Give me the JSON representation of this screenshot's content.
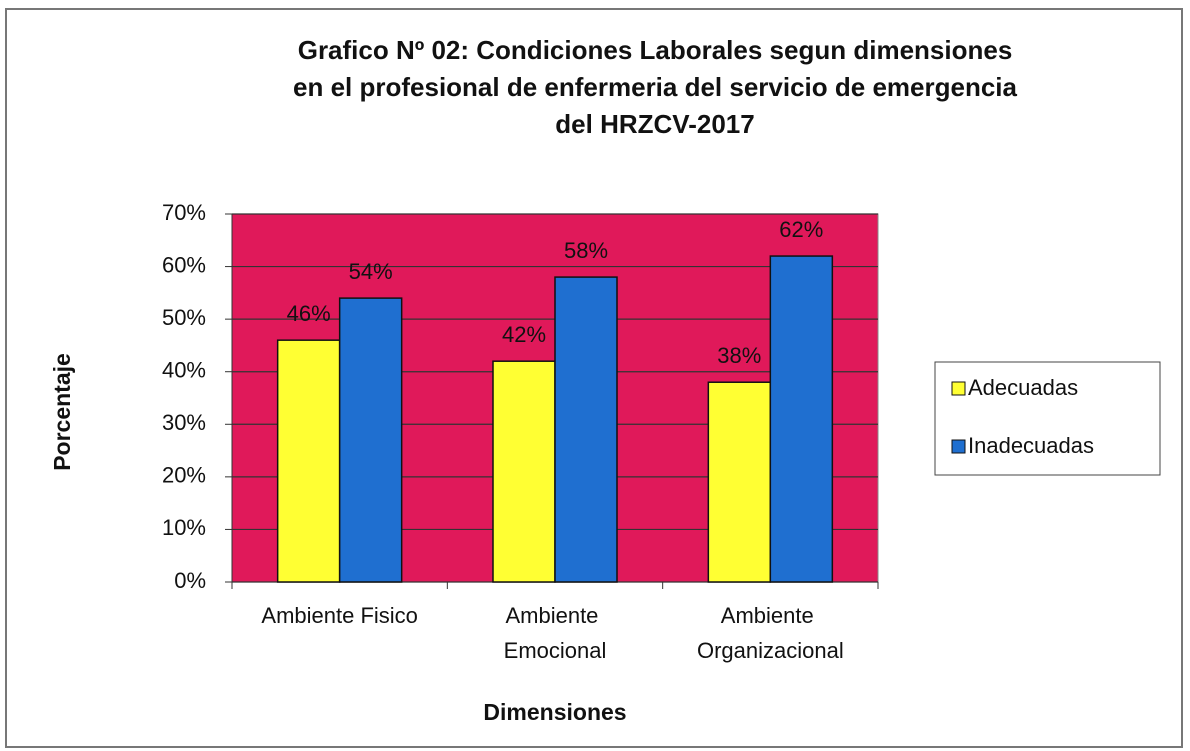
{
  "chart_data": {
    "type": "bar",
    "title": [
      "Grafico Nº 02: Condiciones Laborales segun dimensiones",
      "en el profesional de enfermeria del servicio de emergencia",
      "del HRZCV-2017"
    ],
    "x_label": "Dimensiones",
    "y_label": "Porcentaje",
    "categories": [
      "Ambiente Fisico",
      "Ambiente Emocional",
      "Ambiente Organizacional"
    ],
    "series": [
      {
        "name": "Adecuadas",
        "color": "#ffff33",
        "values": [
          46,
          42,
          38
        ],
        "value_labels": [
          "46%",
          "42%",
          "38%"
        ]
      },
      {
        "name": "Inadecuadas",
        "color": "#1f6fd0",
        "values": [
          54,
          58,
          62
        ],
        "value_labels": [
          "54%",
          "58%",
          "62%"
        ]
      }
    ],
    "ylim": [
      0,
      70
    ],
    "yticks": [
      {
        "value": 0,
        "label": "0%"
      },
      {
        "value": 10,
        "label": "10%"
      },
      {
        "value": 20,
        "label": "20%"
      },
      {
        "value": 30,
        "label": "30%"
      },
      {
        "value": 40,
        "label": "40%"
      },
      {
        "value": 50,
        "label": "50%"
      },
      {
        "value": 60,
        "label": "60%"
      },
      {
        "value": 70,
        "label": "70%"
      }
    ],
    "grid": true,
    "plot_background": "#e0195a",
    "legend": "right"
  }
}
